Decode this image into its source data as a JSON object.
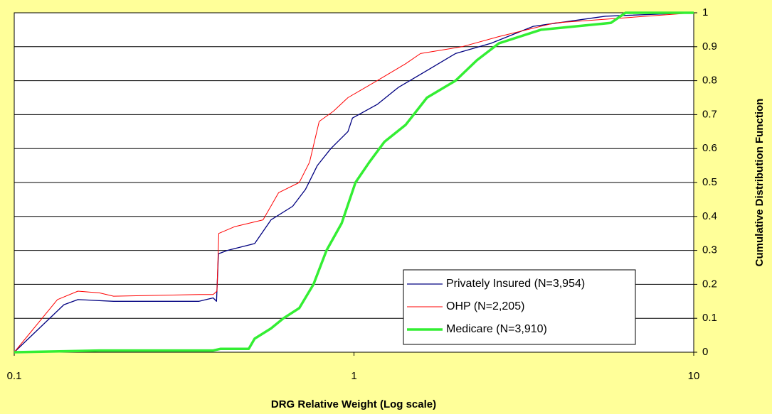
{
  "chart_data": {
    "type": "line",
    "x_label": "DRG Relative Weight  (Log scale)",
    "y_label": "Cumulative Distribution Function",
    "xlim": [
      0.1,
      10
    ],
    "xticks": [
      0.1,
      1,
      10
    ],
    "xscale": "log",
    "ylim": [
      0,
      1
    ],
    "yticks": [
      0,
      0.1,
      0.2,
      0.3,
      0.4,
      0.5,
      0.6,
      0.7,
      0.8,
      0.9,
      1
    ],
    "grid": true,
    "legend_position": "lower right",
    "series": [
      {
        "name": "Privately Insured (N=3,954)",
        "color": "#000080",
        "width": 1.3,
        "x": [
          0.1,
          0.14,
          0.154,
          0.196,
          0.35,
          0.385,
          0.394,
          0.399,
          0.424,
          0.51,
          0.57,
          0.66,
          0.72,
          0.78,
          0.855,
          0.96,
          0.99,
          1.17,
          1.35,
          1.64,
          1.99,
          2.53,
          3.37,
          5.5,
          10
        ],
        "values": [
          0,
          0.14,
          0.155,
          0.15,
          0.15,
          0.16,
          0.15,
          0.29,
          0.3,
          0.32,
          0.39,
          0.43,
          0.48,
          0.55,
          0.6,
          0.65,
          0.69,
          0.73,
          0.78,
          0.83,
          0.88,
          0.91,
          0.96,
          0.99,
          1
        ]
      },
      {
        "name": "OHP (N=2,205)",
        "color": "#ff0000",
        "width": 1,
        "x": [
          0.1,
          0.134,
          0.154,
          0.178,
          0.196,
          0.35,
          0.385,
          0.395,
          0.4,
          0.446,
          0.54,
          0.6,
          0.69,
          0.74,
          0.79,
          0.87,
          0.96,
          1.17,
          1.42,
          1.57,
          2.08,
          2.67,
          3.9,
          10
        ],
        "values": [
          0,
          0.155,
          0.18,
          0.175,
          0.165,
          0.17,
          0.17,
          0.18,
          0.35,
          0.37,
          0.39,
          0.47,
          0.5,
          0.56,
          0.68,
          0.71,
          0.75,
          0.8,
          0.85,
          0.88,
          0.9,
          0.93,
          0.97,
          1
        ]
      },
      {
        "name": "Medicare (N=3,910)",
        "color": "#33ee33",
        "width": 3.5,
        "x": [
          0.1,
          0.178,
          0.385,
          0.405,
          0.49,
          0.51,
          0.57,
          0.62,
          0.69,
          0.76,
          0.83,
          0.92,
          1.01,
          1.11,
          1.23,
          1.42,
          1.64,
          1.99,
          2.3,
          2.67,
          3.55,
          5.7,
          6.3,
          10
        ],
        "values": [
          0,
          0.005,
          0.005,
          0.01,
          0.01,
          0.04,
          0.07,
          0.1,
          0.13,
          0.2,
          0.3,
          0.38,
          0.5,
          0.56,
          0.62,
          0.67,
          0.75,
          0.8,
          0.86,
          0.91,
          0.95,
          0.97,
          1,
          1
        ]
      }
    ]
  }
}
